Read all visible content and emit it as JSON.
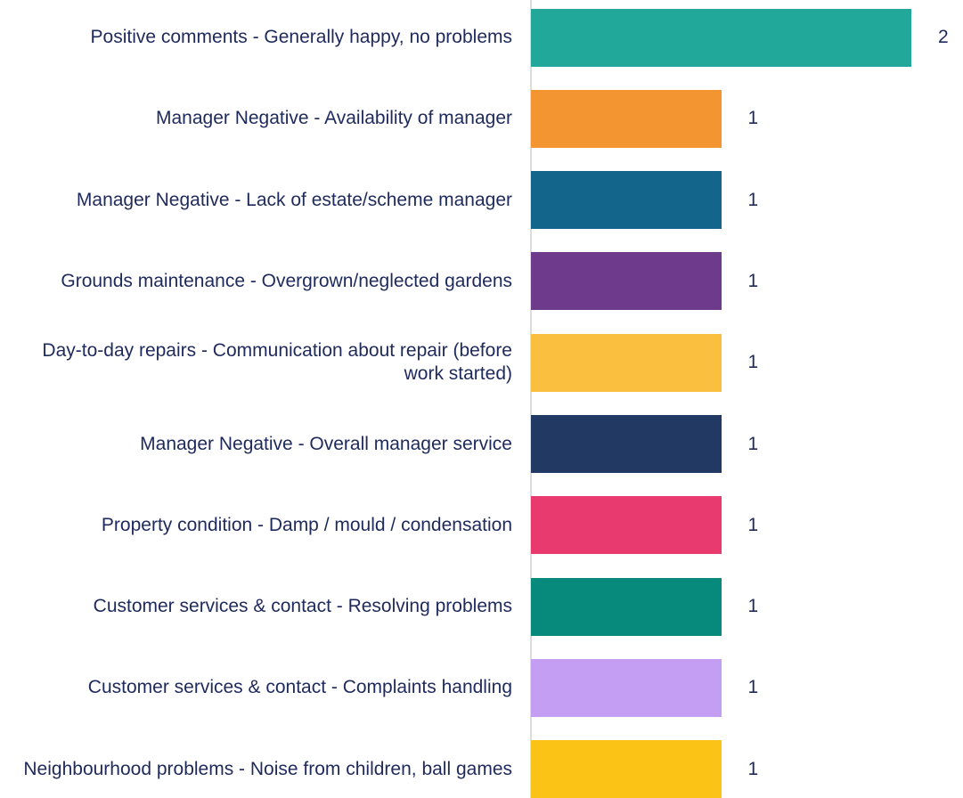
{
  "chart_data": {
    "type": "hbar",
    "categories": [
      "Positive comments - Generally happy, no problems",
      "Manager Negative - Availability of manager",
      "Manager Negative - Lack of estate/scheme manager",
      "Grounds maintenance - Overgrown/neglected gardens",
      "Day-to-day repairs - Communication about repair (before work started)",
      "Manager Negative - Overall manager service",
      "Property condition - Damp / mould / condensation",
      "Customer services & contact - Resolving problems",
      "Customer services & contact - Complaints handling",
      "Neighbourhood problems - Noise from children, ball games"
    ],
    "values": [
      2,
      1,
      1,
      1,
      1,
      1,
      1,
      1,
      1,
      1
    ],
    "colors": [
      "#22a89a",
      "#f39530",
      "#13658c",
      "#6d3a8c",
      "#fbbf3f",
      "#223a63",
      "#e83a6f",
      "#07897c",
      "#c39ef2",
      "#fbc315"
    ],
    "xlim": [
      0,
      2
    ]
  }
}
